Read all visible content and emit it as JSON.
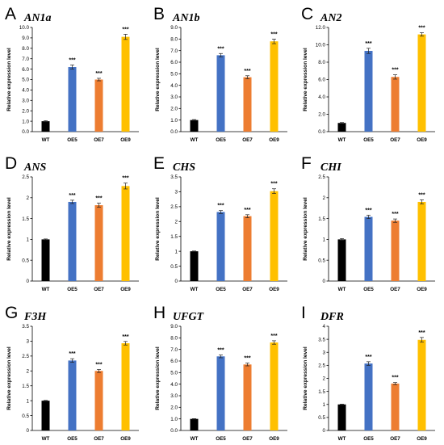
{
  "chart_data": [
    {
      "type": "bar",
      "panel": "A",
      "title": "AN1a",
      "ylabel": "Relative expression level",
      "categories": [
        "WT",
        "OE5",
        "OE7",
        "OE9"
      ],
      "values": [
        1.0,
        6.2,
        5.0,
        9.1
      ],
      "errors": [
        0.05,
        0.2,
        0.12,
        0.25
      ],
      "significance": [
        "",
        "***",
        "***",
        "***"
      ],
      "ylim": [
        0,
        10
      ],
      "yticks": [
        "0.0",
        "1.0",
        "2.0",
        "3.0",
        "4.0",
        "5.0",
        "6.0",
        "7.0",
        "8.0",
        "9.0",
        "10.0"
      ]
    },
    {
      "type": "bar",
      "panel": "B",
      "title": "AN1b",
      "ylabel": "Relative expression level",
      "categories": [
        "WT",
        "OE5",
        "OE7",
        "OE9"
      ],
      "values": [
        1.0,
        6.6,
        4.7,
        7.8
      ],
      "errors": [
        0.04,
        0.15,
        0.13,
        0.2
      ],
      "significance": [
        "",
        "***",
        "***",
        "***"
      ],
      "ylim": [
        0,
        9
      ],
      "yticks": [
        "0.0",
        "1.0",
        "2.0",
        "3.0",
        "4.0",
        "5.0",
        "6.0",
        "7.0",
        "8.0",
        "9.0"
      ]
    },
    {
      "type": "bar",
      "panel": "C",
      "title": "AN2",
      "ylabel": "Relative expression level",
      "categories": [
        "WT",
        "OE5",
        "OE7",
        "OE9"
      ],
      "values": [
        1.0,
        9.3,
        6.3,
        11.2
      ],
      "errors": [
        0.05,
        0.3,
        0.25,
        0.2
      ],
      "significance": [
        "",
        "***",
        "***",
        "***"
      ],
      "ylim": [
        0,
        12
      ],
      "yticks": [
        "0.0",
        "2.0",
        "4.0",
        "6.0",
        "8.0",
        "10.0",
        "12.0"
      ]
    },
    {
      "type": "bar",
      "panel": "D",
      "title": "ANS",
      "ylabel": "Relative expression level",
      "categories": [
        "WT",
        "OE5",
        "OE7",
        "OE9"
      ],
      "values": [
        1.0,
        1.9,
        1.82,
        2.28
      ],
      "errors": [
        0.01,
        0.04,
        0.05,
        0.07
      ],
      "significance": [
        "",
        "***",
        "***",
        "***"
      ],
      "ylim": [
        0,
        2.5
      ],
      "yticks": [
        "0",
        "0.5",
        "1",
        "1.5",
        "2",
        "2.5"
      ]
    },
    {
      "type": "bar",
      "panel": "E",
      "title": "CHS",
      "ylabel": "Relative expression level",
      "categories": [
        "WT",
        "OE5",
        "OE7",
        "OE9"
      ],
      "values": [
        1.0,
        2.32,
        2.18,
        3.02
      ],
      "errors": [
        0.01,
        0.05,
        0.05,
        0.08
      ],
      "significance": [
        "",
        "***",
        "***",
        "***"
      ],
      "ylim": [
        0,
        3.5
      ],
      "yticks": [
        "0",
        "0.5",
        "1",
        "1.5",
        "2",
        "2.5",
        "3",
        "3.5"
      ]
    },
    {
      "type": "bar",
      "panel": "F",
      "title": "CHI",
      "ylabel": "Relative expression level",
      "categories": [
        "WT",
        "OE5",
        "OE7",
        "OE9"
      ],
      "values": [
        1.0,
        1.54,
        1.45,
        1.9
      ],
      "errors": [
        0.02,
        0.04,
        0.04,
        0.05
      ],
      "significance": [
        "",
        "***",
        "***",
        "***"
      ],
      "ylim": [
        0,
        2.5
      ],
      "yticks": [
        "0",
        "0.5",
        "1",
        "1.5",
        "2",
        "2.5"
      ]
    },
    {
      "type": "bar",
      "panel": "G",
      "title": "F3H",
      "ylabel": "Relative expression level",
      "categories": [
        "WT",
        "OE5",
        "OE7",
        "OE9"
      ],
      "values": [
        1.0,
        2.35,
        2.0,
        2.93
      ],
      "errors": [
        0.01,
        0.06,
        0.05,
        0.06
      ],
      "significance": [
        "",
        "***",
        "***",
        "***"
      ],
      "ylim": [
        0,
        3.5
      ],
      "yticks": [
        "0",
        "0.5",
        "1",
        "1.5",
        "2",
        "2.5",
        "3",
        "3.5"
      ]
    },
    {
      "type": "bar",
      "panel": "H",
      "title": "UFGT",
      "ylabel": "Relative expression level",
      "categories": [
        "WT",
        "OE5",
        "OE7",
        "OE9"
      ],
      "values": [
        1.0,
        6.4,
        5.7,
        7.6
      ],
      "errors": [
        0.02,
        0.12,
        0.12,
        0.15
      ],
      "significance": [
        "",
        "***",
        "***",
        "***"
      ],
      "ylim": [
        0,
        9
      ],
      "yticks": [
        "0.0",
        "1.0",
        "2.0",
        "3.0",
        "4.0",
        "5.0",
        "6.0",
        "7.0",
        "8.0",
        "9.0"
      ]
    },
    {
      "type": "bar",
      "panel": "I",
      "title": "DFR",
      "ylabel": "Relative expression level",
      "categories": [
        "WT",
        "OE5",
        "OE7",
        "OE9"
      ],
      "values": [
        1.0,
        2.57,
        1.8,
        3.48
      ],
      "errors": [
        0.01,
        0.07,
        0.04,
        0.09
      ],
      "significance": [
        "",
        "***",
        "***",
        "***"
      ],
      "ylim": [
        0,
        4
      ],
      "yticks": [
        "0",
        "0.5",
        "1",
        "1.5",
        "2",
        "2.5",
        "3",
        "3.5",
        "4"
      ]
    }
  ],
  "colors": {
    "WT": "#000000",
    "OE5": "#4472C4",
    "OE7": "#ED7D31",
    "OE9": "#FFC000"
  }
}
